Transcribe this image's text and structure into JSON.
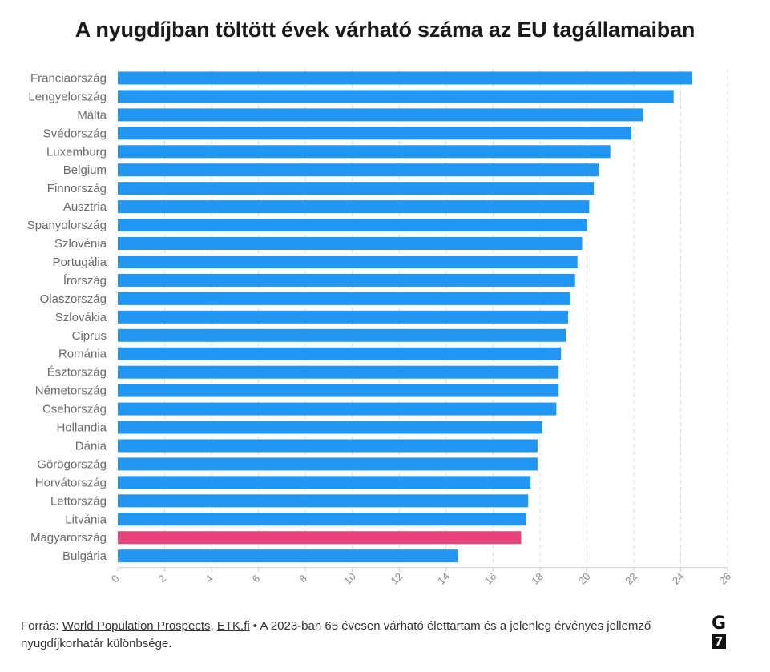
{
  "title": "A nyugdíjban töltött évek várható száma az EU tagállamaiban",
  "colors": {
    "bar": "#2196f3",
    "highlight": "#e8437a",
    "grid": "#dddddd"
  },
  "footer": {
    "prefix": "Forrás: ",
    "source1": "World Population Prospects",
    "separator": ", ",
    "source2": "ETK.fi",
    "note": " • A 2023-ban 65 évesen várható élettartam és a jelenleg érvényes jellemző nyugdíjkorhatár különbsége."
  },
  "logo": {
    "top": "G",
    "bottom": "7"
  },
  "chart_data": {
    "type": "bar",
    "orientation": "horizontal",
    "categories": [
      "Franciaország",
      "Lengyelország",
      "Málta",
      "Svédország",
      "Luxemburg",
      "Belgium",
      "Finnország",
      "Ausztria",
      "Spanyolország",
      "Szlovénia",
      "Portugália",
      "Írország",
      "Olaszország",
      "Szlovákia",
      "Ciprus",
      "Románia",
      "Észtország",
      "Németország",
      "Csehország",
      "Hollandia",
      "Dánia",
      "Görögország",
      "Horvátország",
      "Lettország",
      "Litvánia",
      "Magyarország",
      "Bulgária"
    ],
    "values": [
      24.5,
      23.7,
      22.4,
      21.9,
      21.0,
      20.5,
      20.3,
      20.1,
      20.0,
      19.8,
      19.6,
      19.5,
      19.3,
      19.2,
      19.1,
      18.9,
      18.8,
      18.8,
      18.7,
      18.1,
      17.9,
      17.9,
      17.6,
      17.5,
      17.4,
      17.2,
      14.5
    ],
    "highlight": "Magyarország",
    "xlim": [
      0,
      26
    ],
    "xticks": [
      0,
      2,
      4,
      6,
      8,
      10,
      12,
      14,
      16,
      18,
      20,
      22,
      24,
      26
    ],
    "grid": "vertical dashed"
  }
}
